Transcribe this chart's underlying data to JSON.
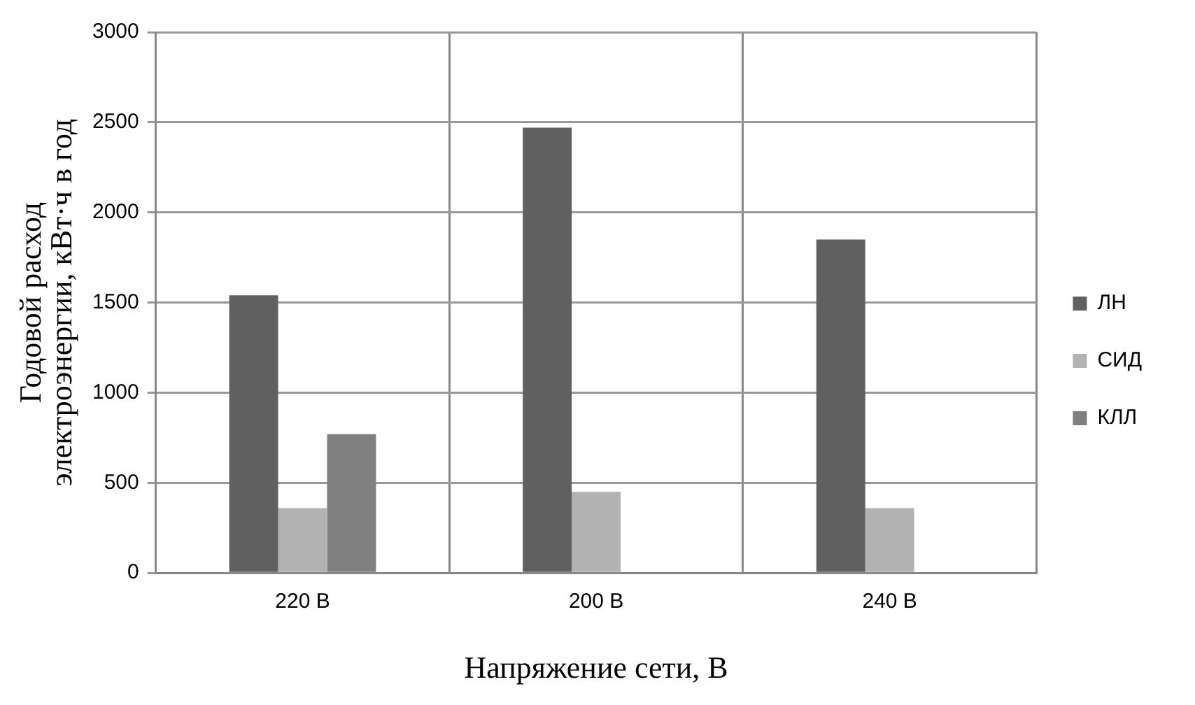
{
  "chart_data": {
    "type": "bar",
    "xlabel": "Напряжение сети, В",
    "ylabel": "Годовой расход\nэлектроэнергии, кВт·ч в год",
    "categories": [
      "220 В",
      "200 В",
      "240 В"
    ],
    "series": [
      {
        "name": "ЛН",
        "color": "#606060",
        "values": [
          1540,
          2470,
          1850
        ]
      },
      {
        "name": "СИД",
        "color": "#b2b2b2",
        "values": [
          360,
          450,
          360
        ]
      },
      {
        "name": "КЛЛ",
        "color": "#808080",
        "values": [
          770,
          null,
          null
        ]
      }
    ],
    "ylim": [
      0,
      3000
    ],
    "yticks": [
      0,
      500,
      1000,
      1500,
      2000,
      2500,
      3000
    ],
    "grid": true,
    "legend": "right"
  }
}
